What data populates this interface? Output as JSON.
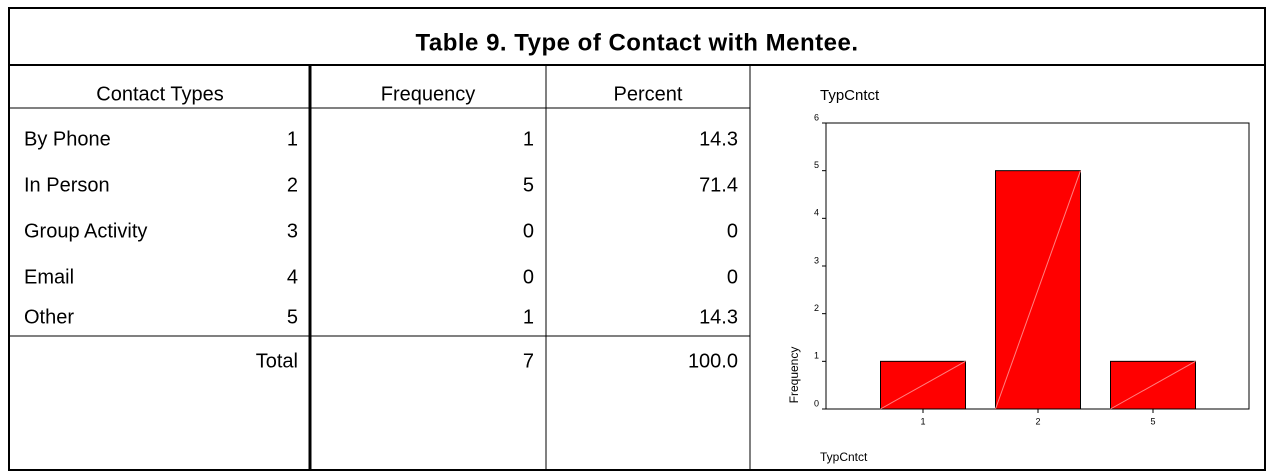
{
  "title": "Table 9.  Type of Contact with Mentee.",
  "table": {
    "headers": [
      "Contact Types",
      "Frequency",
      "Percent"
    ],
    "rows": [
      [
        "By Phone",
        "1",
        "1",
        "14.3"
      ],
      [
        "In Person",
        "2",
        "5",
        "71.4"
      ],
      [
        "Group Activity",
        "3",
        "0",
        "0"
      ],
      [
        "Email",
        "4",
        "0",
        "0"
      ],
      [
        "Other",
        "5",
        "1",
        "14.3"
      ]
    ],
    "total": [
      "Total",
      "7",
      "100.0"
    ]
  },
  "chart_data": {
    "type": "bar",
    "title": "TypCntct",
    "x_label": "TypCntct",
    "y_label": "Frequency",
    "categories": [
      "1",
      "2",
      "5"
    ],
    "values": [
      1,
      5,
      1
    ],
    "color": "#ff0000",
    "ylim": [
      0,
      6
    ],
    "yticks": [
      0,
      1,
      2,
      3,
      4,
      5,
      6
    ]
  }
}
